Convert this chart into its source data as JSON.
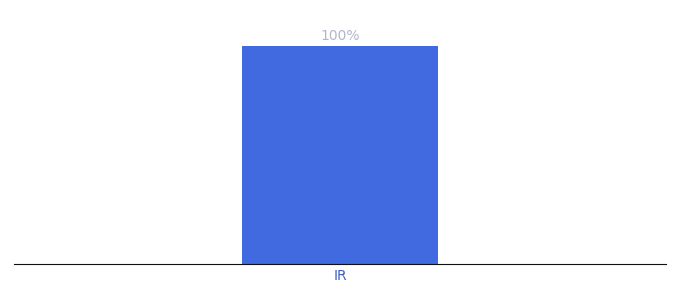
{
  "categories": [
    "IR"
  ],
  "values": [
    100
  ],
  "bar_color": "#4169e0",
  "label_text": "100%",
  "label_color": "#b0b8c8",
  "xlabel_color": "#4060c0",
  "background_color": "#ffffff",
  "bar_width": 0.6,
  "ylim": [
    0,
    110
  ],
  "label_fontsize": 10,
  "xlabel_fontsize": 10
}
